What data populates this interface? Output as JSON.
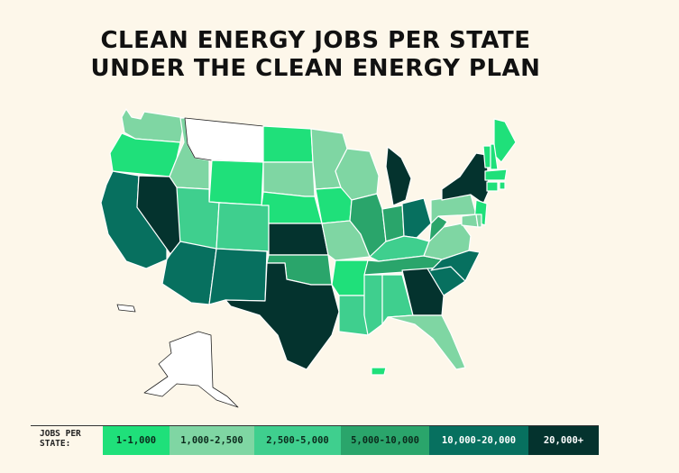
{
  "title": {
    "line1": "CLEAN ENERGY JOBS PER STATE",
    "line2": "UNDER THE CLEAN ENERGY PLAN"
  },
  "legend": {
    "label_line1": "JOBS PER",
    "label_line2": "STATE:",
    "bins": [
      {
        "label": "1-1,000",
        "color": "#1fe07a",
        "text_color": "#0b2a1c"
      },
      {
        "label": "1,000-2,500",
        "color": "#7fd6a3",
        "text_color": "#0b2a1c"
      },
      {
        "label": "2,500-5,000",
        "color": "#3fcf8e",
        "text_color": "#0b2a1c"
      },
      {
        "label": "5,000-10,000",
        "color": "#2aa56b",
        "text_color": "#0b2a1c"
      },
      {
        "label": "10,000-20,000",
        "color": "#07705f",
        "text_color": "#ffffff"
      },
      {
        "label": "20,000+",
        "color": "#04332e",
        "text_color": "#ffffff"
      }
    ]
  },
  "map_data": {
    "type": "choropleth",
    "region": "United States",
    "states": [
      {
        "id": "WA",
        "bin": 1
      },
      {
        "id": "OR",
        "bin": 0
      },
      {
        "id": "CA",
        "bin": 4
      },
      {
        "id": "NV",
        "bin": 5
      },
      {
        "id": "ID",
        "bin": 1
      },
      {
        "id": "MT",
        "bin": -1
      },
      {
        "id": "WY",
        "bin": 0
      },
      {
        "id": "UT",
        "bin": 2
      },
      {
        "id": "AZ",
        "bin": 4
      },
      {
        "id": "CO",
        "bin": 2
      },
      {
        "id": "NM",
        "bin": 4
      },
      {
        "id": "ND",
        "bin": 0
      },
      {
        "id": "SD",
        "bin": 1
      },
      {
        "id": "NE",
        "bin": 0
      },
      {
        "id": "KS",
        "bin": 5
      },
      {
        "id": "OK",
        "bin": 3
      },
      {
        "id": "TX",
        "bin": 5
      },
      {
        "id": "MN",
        "bin": 1
      },
      {
        "id": "IA",
        "bin": 0
      },
      {
        "id": "MO",
        "bin": 1
      },
      {
        "id": "AR",
        "bin": 0
      },
      {
        "id": "LA",
        "bin": 2
      },
      {
        "id": "WI",
        "bin": 1
      },
      {
        "id": "IL",
        "bin": 3
      },
      {
        "id": "MI",
        "bin": 5
      },
      {
        "id": "IN",
        "bin": 3
      },
      {
        "id": "OH",
        "bin": 4
      },
      {
        "id": "KY",
        "bin": 2
      },
      {
        "id": "TN",
        "bin": 3
      },
      {
        "id": "MS",
        "bin": 2
      },
      {
        "id": "AL",
        "bin": 2
      },
      {
        "id": "GA",
        "bin": 5
      },
      {
        "id": "FL",
        "bin": 1
      },
      {
        "id": "SC",
        "bin": 4
      },
      {
        "id": "NC",
        "bin": 4
      },
      {
        "id": "VA",
        "bin": 1
      },
      {
        "id": "WV",
        "bin": 3
      },
      {
        "id": "PA",
        "bin": 1
      },
      {
        "id": "NY",
        "bin": 5
      },
      {
        "id": "ME",
        "bin": 0
      },
      {
        "id": "VT",
        "bin": 0
      },
      {
        "id": "NH",
        "bin": 0
      },
      {
        "id": "MA",
        "bin": 0
      },
      {
        "id": "NJ",
        "bin": 0
      },
      {
        "id": "MD",
        "bin": 1
      },
      {
        "id": "DE",
        "bin": 1
      },
      {
        "id": "CT",
        "bin": 0
      },
      {
        "id": "RI",
        "bin": 0
      },
      {
        "id": "AK",
        "bin": -1
      },
      {
        "id": "HI",
        "bin": -1
      },
      {
        "id": "PR",
        "bin": 0
      }
    ]
  }
}
